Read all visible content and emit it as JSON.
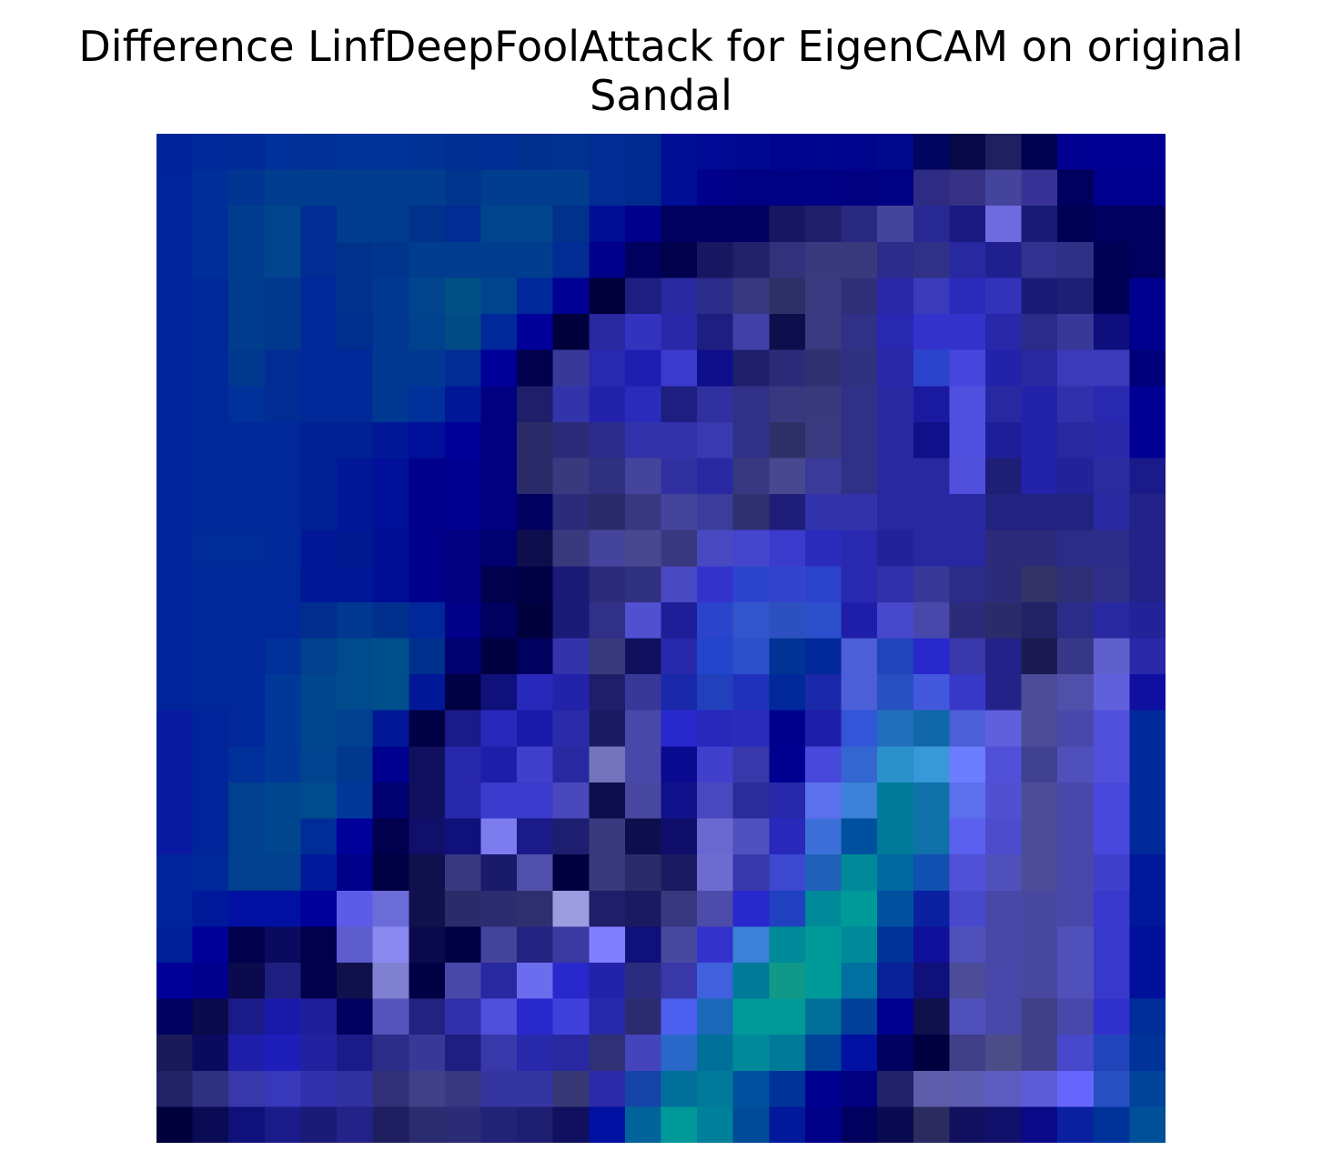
{
  "chart_data": {
    "type": "heatmap",
    "title_lines": [
      "Difference LinfDeepFoolAttack for EigenCAM on original",
      "Sandal"
    ],
    "xlabel": "",
    "ylabel": "",
    "axes_visible": false,
    "grid": false,
    "colormap": "blue-teal (approximate)",
    "rows": 28,
    "cols": 28,
    "cells": [
      [
        "#00239A",
        "#002898",
        "#002A97",
        "#00309A",
        "#003095",
        "#00349A",
        "#003299",
        "#003296",
        "#002F94",
        "#002E95",
        "#002F90",
        "#003090",
        "#002C93",
        "#002B8E",
        "#000E95",
        "#000A95",
        "#000A91",
        "#00048F",
        "#00078F",
        "#00058E",
        "#000A8E",
        "#00055E",
        "#060945",
        "#202060",
        "#00024F",
        "#010090",
        "#000095",
        "#000095"
      ],
      [
        "#00259A",
        "#002E98",
        "#003591",
        "#003D8E",
        "#003D8E",
        "#003D8E",
        "#003D8E",
        "#003D8E",
        "#00358D",
        "#003D8E",
        "#003D8E",
        "#003D8E",
        "#002C93",
        "#002B8E",
        "#000E95",
        "#00008A",
        "#000085",
        "#000085",
        "#000085",
        "#000080",
        "#000082",
        "#2E2C82",
        "#373186",
        "#44449C",
        "#383296",
        "#00005E",
        "#00008E",
        "#00008E"
      ],
      [
        "#00259A",
        "#002E98",
        "#003D8E",
        "#00448E",
        "#002C94",
        "#003D8E",
        "#003D8E",
        "#00318B",
        "#002C94",
        "#00448E",
        "#00448E",
        "#00318B",
        "#000E95",
        "#00008A",
        "#000060",
        "#000060",
        "#000060",
        "#171761",
        "#1E1E6A",
        "#292982",
        "#44449C",
        "#292993",
        "#1A1A80",
        "#6F6AE0",
        "#1A1A77",
        "#000055",
        "#00005E",
        "#00005E"
      ],
      [
        "#00259A",
        "#002E98",
        "#003D8E",
        "#00448E",
        "#002C94",
        "#00318B",
        "#00358D",
        "#003D8E",
        "#003D8E",
        "#003D8E",
        "#003D8E",
        "#002C93",
        "#00008A",
        "#00005E",
        "#00004C",
        "#171761",
        "#21216A",
        "#31317C",
        "#393A7D",
        "#393A7D",
        "#2C2C8A",
        "#303087",
        "#2828A0",
        "#1F1F8F",
        "#31318F",
        "#2F2F86",
        "#000055",
        "#00005E"
      ],
      [
        "#00259A",
        "#00289A",
        "#003D8E",
        "#00388E",
        "#002898",
        "#00318B",
        "#003892",
        "#00448E",
        "#005086",
        "#00448E",
        "#00289A",
        "#000095",
        "#00003C",
        "#1E1E80",
        "#2828A0",
        "#2B2B8A",
        "#383880",
        "#2F2F68",
        "#3A3A80",
        "#2F2F77",
        "#2828A8",
        "#3A3ABB",
        "#2B2BBB",
        "#3232BB",
        "#1A1A77",
        "#1E1E77",
        "#000055",
        "#00008E"
      ],
      [
        "#00259A",
        "#00289A",
        "#003D8E",
        "#00388E",
        "#002898",
        "#002E8E",
        "#003892",
        "#00418E",
        "#004A86",
        "#00289A",
        "#000098",
        "#00003C",
        "#2828A0",
        "#3333C0",
        "#2828A8",
        "#1E1E80",
        "#4040A8",
        "#0E0E4C",
        "#3A3A80",
        "#303087",
        "#2828B0",
        "#3333CC",
        "#3333CC",
        "#2828A8",
        "#2B2B8A",
        "#383899",
        "#0E0E7D",
        "#00008E"
      ],
      [
        "#00259A",
        "#00289A",
        "#00388E",
        "#002C94",
        "#002898",
        "#002898",
        "#003892",
        "#003892",
        "#002C94",
        "#000098",
        "#00004C",
        "#383899",
        "#2828B0",
        "#1E1EB0",
        "#3A3ACC",
        "#0E0E8A",
        "#1E1E6A",
        "#2B2B7A",
        "#303070",
        "#303080",
        "#2828A8",
        "#2C44CC",
        "#4646DD",
        "#2222AA",
        "#2828A0",
        "#3A3ABB",
        "#3A3ABB",
        "#00007A"
      ],
      [
        "#00259A",
        "#00289A",
        "#00309A",
        "#002C94",
        "#002898",
        "#002898",
        "#003892",
        "#00309A",
        "#001898",
        "#000080",
        "#1E1E6A",
        "#3333AA",
        "#2222AA",
        "#2B2BBB",
        "#1E1E80",
        "#3030A0",
        "#303087",
        "#383880",
        "#393A7D",
        "#303087",
        "#2828A0",
        "#1A1AA0",
        "#5050E0",
        "#2828A0",
        "#2222AA",
        "#3030AA",
        "#2828B0",
        "#000095"
      ],
      [
        "#00259A",
        "#00289A",
        "#00289A",
        "#00289A",
        "#002094",
        "#002094",
        "#001898",
        "#001098",
        "#000098",
        "#000080",
        "#2B2B6A",
        "#2B2B7A",
        "#2B2B8A",
        "#3232AA",
        "#3232AA",
        "#3A3AB0",
        "#303087",
        "#2F2F68",
        "#3A3A80",
        "#303087",
        "#2828A0",
        "#10108A",
        "#5050E0",
        "#1E1E99",
        "#2222AA",
        "#2828A0",
        "#2828A8",
        "#000095"
      ],
      [
        "#00259A",
        "#00289A",
        "#00289A",
        "#00289A",
        "#002094",
        "#001898",
        "#001098",
        "#00008A",
        "#000090",
        "#000080",
        "#2B2B6A",
        "#393A7D",
        "#303080",
        "#44449C",
        "#3030A0",
        "#2828A0",
        "#383880",
        "#484890",
        "#3A3A99",
        "#303087",
        "#2828A0",
        "#2828A0",
        "#5050DD",
        "#1E1E77",
        "#2222AA",
        "#222299",
        "#2B2BA0",
        "#1A1A8A"
      ],
      [
        "#00259A",
        "#00289A",
        "#00289A",
        "#00289A",
        "#002094",
        "#001898",
        "#001098",
        "#00008A",
        "#000090",
        "#000080",
        "#00005E",
        "#2B2B7A",
        "#2B2B6A",
        "#383880",
        "#44449C",
        "#3C3C9C",
        "#303070",
        "#1E1E7A",
        "#3232AA",
        "#3232AA",
        "#2828A0",
        "#2828A0",
        "#2828A0",
        "#222280",
        "#222280",
        "#222280",
        "#2828A0",
        "#222288"
      ],
      [
        "#00259A",
        "#002C98",
        "#002C98",
        "#002898",
        "#001898",
        "#001890",
        "#000E95",
        "#00008A",
        "#000080",
        "#000070",
        "#0E0E4C",
        "#393A7D",
        "#44449C",
        "#484890",
        "#383880",
        "#4848C0",
        "#4444CC",
        "#3A3ACC",
        "#2B2BBB",
        "#2828B0",
        "#22229A",
        "#2828A0",
        "#2828A0",
        "#2B2B7A",
        "#2B2B7A",
        "#2B2B88",
        "#2B2B88",
        "#222288"
      ],
      [
        "#00259A",
        "#00289A",
        "#00289A",
        "#00289A",
        "#001898",
        "#001898",
        "#000E95",
        "#00008A",
        "#000080",
        "#00004C",
        "#000044",
        "#1A1A77",
        "#2B2B7A",
        "#303080",
        "#4848C0",
        "#3333CC",
        "#2C44CC",
        "#3344CC",
        "#2C44CC",
        "#2828B0",
        "#3030AA",
        "#383899",
        "#2B2B88",
        "#2B2B7A",
        "#333366",
        "#2F2F77",
        "#2F2F88",
        "#222288"
      ],
      [
        "#00259A",
        "#00289A",
        "#00289A",
        "#00289A",
        "#002D8E",
        "#003892",
        "#00308E",
        "#00289A",
        "#000088",
        "#00005E",
        "#00003C",
        "#1A1A77",
        "#303087",
        "#5050D0",
        "#1E1E99",
        "#2A44CC",
        "#3355CC",
        "#2C50C0",
        "#2C50CC",
        "#1E1EAA",
        "#4848CC",
        "#4848AA",
        "#2B2B7A",
        "#2B2B6A",
        "#222266",
        "#2B2B88",
        "#2828A0",
        "#222299"
      ],
      [
        "#00259A",
        "#00289A",
        "#00289A",
        "#00309A",
        "#00408E",
        "#004A8E",
        "#00508E",
        "#00308E",
        "#00006E",
        "#000040",
        "#00005E",
        "#3333AA",
        "#393A7D",
        "#10105E",
        "#2828AA",
        "#2244CC",
        "#2C50CC",
        "#003394",
        "#00289A",
        "#4C5ED8",
        "#2244BB",
        "#2828CC",
        "#3838AA",
        "#222288",
        "#1A1A50",
        "#383888",
        "#6060CC",
        "#2828A8"
      ],
      [
        "#00259A",
        "#00289A",
        "#00289A",
        "#00389A",
        "#00468E",
        "#004A8E",
        "#00508E",
        "#001898",
        "#000044",
        "#10107A",
        "#2828BB",
        "#2222AA",
        "#1E1E6A",
        "#383899",
        "#1A28AA",
        "#2240BB",
        "#2030BB",
        "#00289A",
        "#1A28AA",
        "#4C5ED8",
        "#2850C0",
        "#4458DD",
        "#3838C8",
        "#222288",
        "#4C4C99",
        "#5050AA",
        "#6060DD",
        "#1010A0"
      ],
      [
        "#0A1AA0",
        "#00259A",
        "#00289A",
        "#00389A",
        "#00468E",
        "#00408E",
        "#001898",
        "#000044",
        "#1A1A88",
        "#2828BB",
        "#1A1AAA",
        "#2B2BAA",
        "#1A1A60",
        "#4848A8",
        "#2828CC",
        "#2828BB",
        "#2B2BBB",
        "#00008C",
        "#1E1EAA",
        "#3355D8",
        "#2070BB",
        "#1068A8",
        "#4C5ED8",
        "#6060DD",
        "#4C4C99",
        "#4848AA",
        "#5050DD",
        "#002A99"
      ],
      [
        "#0A1AA0",
        "#00259A",
        "#00309A",
        "#00389A",
        "#004490",
        "#00388E",
        "#00008E",
        "#10105E",
        "#2828AA",
        "#1E1EAA",
        "#4040CC",
        "#2828A0",
        "#7474BC",
        "#4848A8",
        "#0A0A90",
        "#4040CC",
        "#3838AA",
        "#000090",
        "#4848DD",
        "#3366D0",
        "#2A90C8",
        "#3898D8",
        "#6C7CFF",
        "#5050D8",
        "#404090",
        "#5050BB",
        "#5050DD",
        "#002A99"
      ],
      [
        "#0A1AA0",
        "#00259A",
        "#00408E",
        "#00468E",
        "#004A8E",
        "#00389A",
        "#000070",
        "#10105E",
        "#2828AA",
        "#3A3ACC",
        "#3A3ACC",
        "#4848BB",
        "#0E0E4C",
        "#4848A0",
        "#10108A",
        "#4848C0",
        "#2B2B99",
        "#2828AA",
        "#5C70EE",
        "#3C80D8",
        "#007A99",
        "#1070A8",
        "#5C70EE",
        "#5050D0",
        "#4C4C99",
        "#4848AA",
        "#4848DD",
        "#002A99"
      ],
      [
        "#0A1AA0",
        "#00259A",
        "#00408E",
        "#00468E",
        "#002C98",
        "#00009A",
        "#00004C",
        "#10106A",
        "#10107A",
        "#7C7CEE",
        "#1A1A88",
        "#1E1E70",
        "#393A7D",
        "#0E0E4C",
        "#0E0E6A",
        "#6868D0",
        "#5050C0",
        "#2828BB",
        "#3C70D8",
        "#0050A0",
        "#007A99",
        "#1070A8",
        "#5C60EE",
        "#4C4CCC",
        "#4C4C99",
        "#4848AA",
        "#4848DD",
        "#002A99"
      ],
      [
        "#00259A",
        "#00289A",
        "#00408E",
        "#00408E",
        "#00189A",
        "#00008A",
        "#000044",
        "#10104C",
        "#383880",
        "#1A1A6A",
        "#5050AA",
        "#000040",
        "#393A7D",
        "#2B2B6A",
        "#1A1A60",
        "#6C6CD0",
        "#3838AA",
        "#3C48D0",
        "#2060B8",
        "#008A99",
        "#0068A0",
        "#1050B0",
        "#5050D8",
        "#5050BB",
        "#4C4C99",
        "#4848AA",
        "#4040CC",
        "#00189A"
      ],
      [
        "#00259A",
        "#00189A",
        "#0010A0",
        "#0010A0",
        "#00009A",
        "#5C5CE8",
        "#6C6CD8",
        "#10104C",
        "#2B2B6A",
        "#2B2B70",
        "#2F2F70",
        "#9C9CE0",
        "#1E1E6A",
        "#1A1A60",
        "#383880",
        "#4C4CAA",
        "#2828CC",
        "#2040C0",
        "#008A99",
        "#009A99",
        "#0050A0",
        "#0A20A0",
        "#4848CC",
        "#4848A8",
        "#4848A0",
        "#4848AA",
        "#3838CC",
        "#00189A"
      ],
      [
        "#002098",
        "#000098",
        "#00004C",
        "#0A0A5E",
        "#00004C",
        "#5C5CCC",
        "#8888EE",
        "#0A0A4C",
        "#000044",
        "#44449C",
        "#222280",
        "#3A3AA0",
        "#8080FF",
        "#10107A",
        "#4848A0",
        "#3333CC",
        "#3C80D8",
        "#008A99",
        "#009A99",
        "#008A99",
        "#003399",
        "#10109A",
        "#5050BB",
        "#4848A8",
        "#4848A0",
        "#5050BB",
        "#3838CC",
        "#00109A"
      ],
      [
        "#000098",
        "#00008C",
        "#0A0A4C",
        "#1E1E80",
        "#00004C",
        "#10104C",
        "#8080D0",
        "#000044",
        "#4848A8",
        "#2828A0",
        "#6C6CEE",
        "#2828CC",
        "#2222AA",
        "#2B2B80",
        "#3838A8",
        "#4060DD",
        "#007A99",
        "#109988",
        "#009A99",
        "#0070A0",
        "#0A2299",
        "#10107A",
        "#4C4C99",
        "#4848AA",
        "#4848A0",
        "#5050BB",
        "#3838CC",
        "#00109A"
      ],
      [
        "#000060",
        "#0A0A4C",
        "#1A1A88",
        "#1A1AAA",
        "#1E1E99",
        "#00005E",
        "#5454BB",
        "#222280",
        "#3030AA",
        "#5050DD",
        "#2828CC",
        "#4040DD",
        "#2828AA",
        "#2B2B70",
        "#4C5EEE",
        "#1A68B8",
        "#009A99",
        "#009A99",
        "#007099",
        "#00409A",
        "#000090",
        "#10104C",
        "#5050BB",
        "#4848AA",
        "#404088",
        "#4848AA",
        "#3030CC",
        "#002E99"
      ],
      [
        "#1A1A5A",
        "#0A0A5E",
        "#1E1EAA",
        "#1E1EBB",
        "#2222A0",
        "#1A1A88",
        "#2B2B88",
        "#383899",
        "#1E1E80",
        "#3838AA",
        "#2828AA",
        "#2828A0",
        "#303077",
        "#4444BB",
        "#2868C8",
        "#00709A",
        "#008A99",
        "#007A99",
        "#00449A",
        "#0010A0",
        "#000060",
        "#000040",
        "#404088",
        "#4C4C88",
        "#404088",
        "#4848CC",
        "#2244BB",
        "#003399"
      ],
      [
        "#222266",
        "#303080",
        "#3838AA",
        "#3838BB",
        "#3030AA",
        "#3030A0",
        "#303077",
        "#404088",
        "#383880",
        "#3535A0",
        "#3535A0",
        "#383877",
        "#2B2BAA",
        "#1644A8",
        "#00709A",
        "#00799A",
        "#0050A0",
        "#00339A",
        "#000090",
        "#000080",
        "#22226A",
        "#5C5CAA",
        "#5C5CB0",
        "#5C5CC0",
        "#5C5CD8",
        "#6666FF",
        "#2850C0",
        "#004499"
      ],
      [
        "#00003C",
        "#0A0A55",
        "#10107A",
        "#1A1A88",
        "#1A1A77",
        "#222288",
        "#1E1E60",
        "#2B2B70",
        "#2B2B77",
        "#222277",
        "#1E1E70",
        "#10105E",
        "#0010A0",
        "#00649A",
        "#00999A",
        "#00809A",
        "#004A9A",
        "#00189A",
        "#000088",
        "#00005E",
        "#0A0A50",
        "#2B2B60",
        "#10105E",
        "#10106A",
        "#0A0A88",
        "#0A20A0",
        "#003399",
        "#005099"
      ]
    ]
  }
}
